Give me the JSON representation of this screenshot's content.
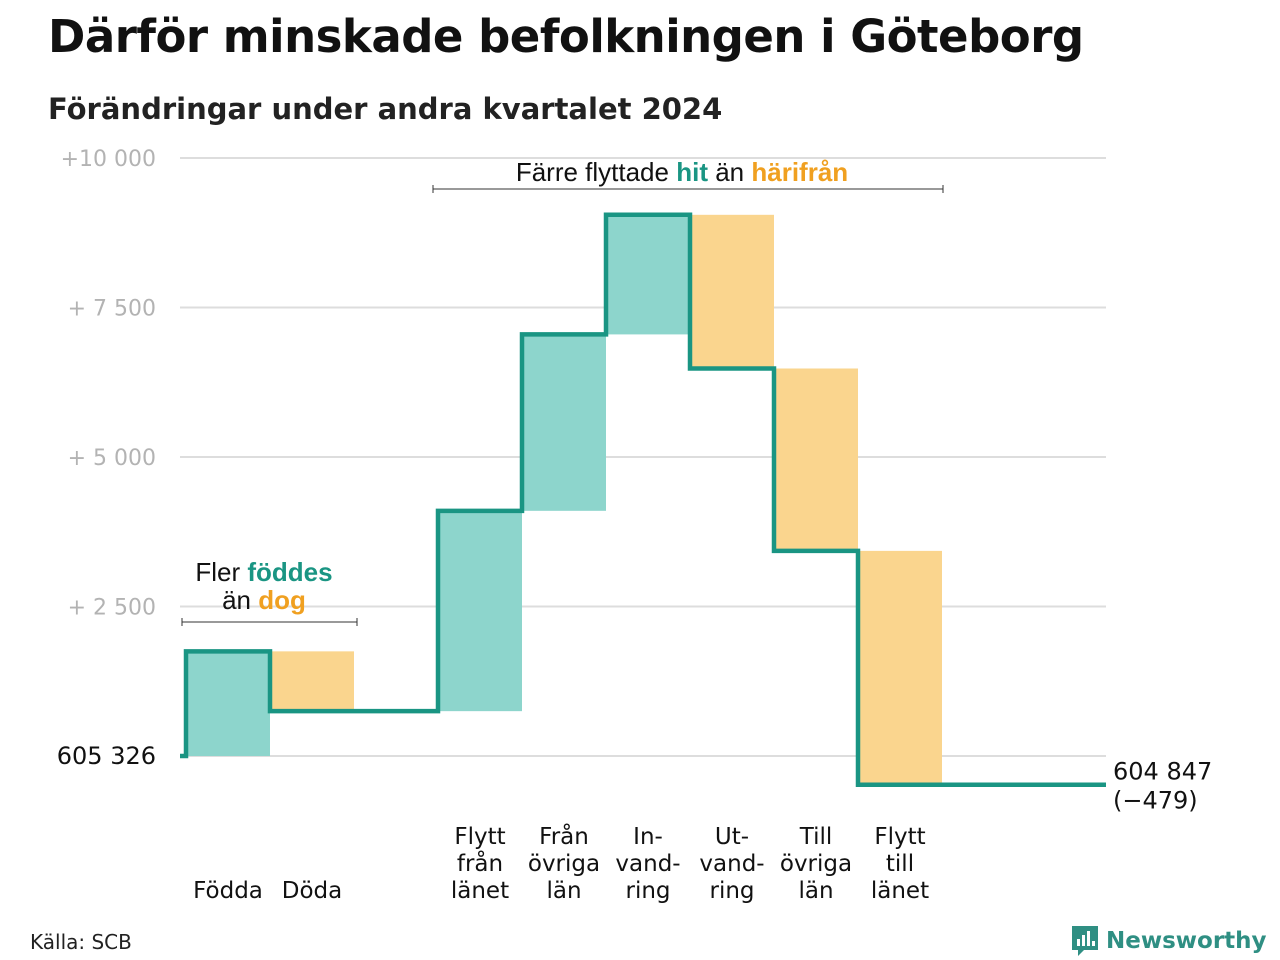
{
  "title": "Därför minskade befolkningen i Göteborg",
  "subtitle": "Förändringar under andra kvartalet 2024",
  "source": "Källa: SCB",
  "brand": {
    "name": "Newsworthy",
    "color": "#2f8f83"
  },
  "colors": {
    "positive": "#8dd5cc",
    "negative": "#fad58e",
    "line": "#1a9583",
    "grid": "#dddddd"
  },
  "chart_data": {
    "type": "waterfall",
    "title": "Därför minskade befolkningen i Göteborg",
    "subtitle": "Förändringar under andra kvartalet 2024",
    "start_value": 605326,
    "end_value": 604847,
    "start_label": "605 326",
    "end_label": "604 847",
    "end_change": "(−479)",
    "ylim": [
      -500,
      10000
    ],
    "y_ticks": [
      {
        "value": 2500,
        "label": "+ 2 500"
      },
      {
        "value": 5000,
        "label": "+ 5 000"
      },
      {
        "value": 7500,
        "label": "+ 7 500"
      },
      {
        "value": 10000,
        "label": "+10 000"
      }
    ],
    "grid": true,
    "steps": [
      {
        "name": "Födda",
        "label_lines": [
          "Födda"
        ],
        "change": 1750,
        "sign": "positive"
      },
      {
        "name": "Döda",
        "label_lines": [
          "Döda"
        ],
        "change": -1000,
        "sign": "negative"
      },
      {
        "name": "",
        "label_lines": [],
        "change": 0,
        "sign": "gap"
      },
      {
        "name": "Flytt från länet",
        "label_lines": [
          "Flytt",
          "från",
          "länet"
        ],
        "change": 3350,
        "sign": "positive"
      },
      {
        "name": "Från övriga län",
        "label_lines": [
          "Från",
          "övriga",
          "län"
        ],
        "change": 2950,
        "sign": "positive"
      },
      {
        "name": "Invandring",
        "label_lines": [
          "In-",
          "vand-",
          "ring"
        ],
        "change": 2000,
        "sign": "positive"
      },
      {
        "name": "Utvandring",
        "label_lines": [
          "Ut-",
          "vand-",
          "ring"
        ],
        "change": -2570,
        "sign": "negative"
      },
      {
        "name": "Till övriga län",
        "label_lines": [
          "Till",
          "övriga",
          "län"
        ],
        "change": -3050,
        "sign": "negative"
      },
      {
        "name": "Flytt till länet",
        "label_lines": [
          "Flytt",
          "till",
          "länet"
        ],
        "change": -3910,
        "sign": "negative"
      }
    ],
    "annotations": [
      {
        "group": "natural",
        "parts": [
          {
            "line": 1,
            "text": "Fler ",
            "style": "normal"
          },
          {
            "line": 1,
            "text": "föddes",
            "style": "positive"
          },
          {
            "line": 2,
            "text": "än ",
            "style": "normal"
          },
          {
            "line": 2,
            "text": "dog",
            "style": "negative"
          }
        ]
      },
      {
        "group": "migration",
        "parts": [
          {
            "line": 1,
            "text": "Färre flyttade ",
            "style": "normal"
          },
          {
            "line": 1,
            "text": "hit",
            "style": "positive"
          },
          {
            "line": 1,
            "text": " än ",
            "style": "normal"
          },
          {
            "line": 1,
            "text": "härifrån",
            "style": "negative"
          }
        ]
      }
    ]
  }
}
